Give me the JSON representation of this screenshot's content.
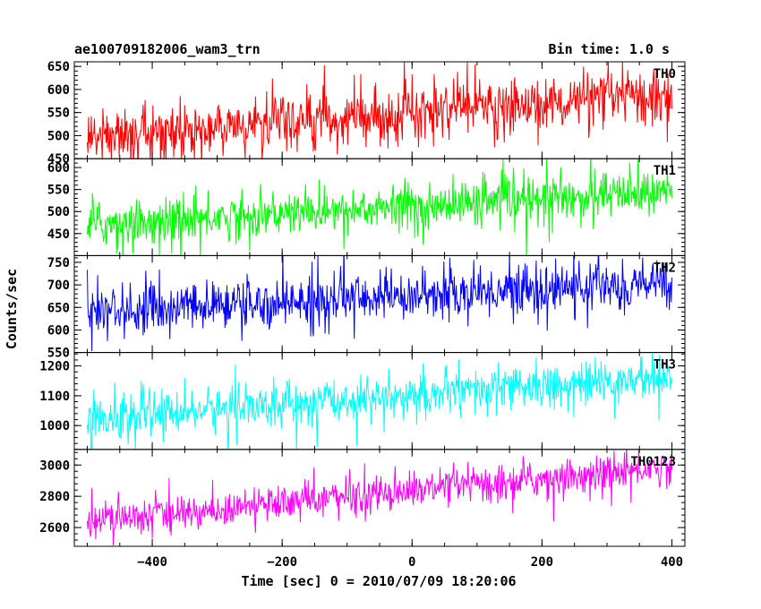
{
  "header": {
    "title": "ae100709182006_wam3_trn",
    "bin_time": "Bin time: 1.0 s"
  },
  "chart_data": {
    "type": "line",
    "xlabel": "Time [sec] 0 = 2010/07/09 18:20:06",
    "ylabel": "Counts/sec",
    "xlim": [
      -520,
      420
    ],
    "x_ticks": [
      -400,
      -200,
      0,
      200,
      400
    ],
    "x_range": [
      -500,
      400
    ],
    "bin_size": 1.0,
    "grid": false,
    "panels": [
      {
        "name": "TH0",
        "color": "#ff0000",
        "ylim": [
          450,
          660
        ],
        "y_ticks": [
          450,
          500,
          550,
          600,
          650
        ],
        "trend_start": 495,
        "trend_end": 590,
        "noise": 28,
        "spike_prob": 0.05
      },
      {
        "name": "TH1",
        "color": "#00ff00",
        "ylim": [
          400,
          620
        ],
        "y_ticks": [
          450,
          500,
          550,
          600
        ],
        "trend_start": 470,
        "trend_end": 545,
        "noise": 25,
        "spike_prob": 0.05
      },
      {
        "name": "TH2",
        "color": "#0000ff",
        "ylim": [
          550,
          765
        ],
        "y_ticks": [
          550,
          600,
          650,
          700,
          750
        ],
        "trend_start": 640,
        "trend_end": 705,
        "noise": 26,
        "spike_prob": 0.05
      },
      {
        "name": "TH3",
        "color": "#00ffff",
        "ylim": [
          920,
          1245
        ],
        "y_ticks": [
          1000,
          1100,
          1200
        ],
        "trend_start": 1025,
        "trend_end": 1160,
        "noise": 35,
        "spike_prob": 0.05
      },
      {
        "name": "TH0123",
        "color": "#ff00ff",
        "ylim": [
          2480,
          3100
        ],
        "y_ticks": [
          2600,
          2800,
          3000
        ],
        "trend_start": 2640,
        "trend_end": 2990,
        "noise": 55,
        "spike_prob": 0.05
      }
    ]
  }
}
